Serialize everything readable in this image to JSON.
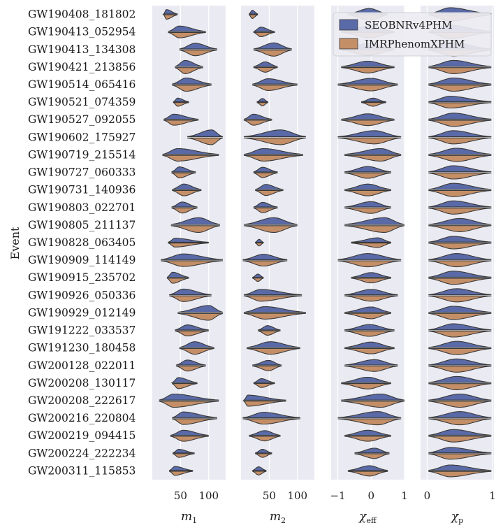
{
  "colors": {
    "panel_bg": "#eaeaf2",
    "grid": "#ffffff",
    "upper": "#5a6aa8",
    "lower": "#c48e67",
    "line": "#3a3a3a"
  },
  "chart_data": {
    "type": "violin",
    "ylabel": "Event",
    "legend": {
      "placement": "top-right",
      "entries": [
        "SEOBNRv4PHM",
        "IMRPhenomXPHM"
      ]
    },
    "events": [
      "GW190408_181802",
      "GW190413_052954",
      "GW190413_134308",
      "GW190421_213856",
      "GW190514_065416",
      "GW190521_074359",
      "GW190527_092055",
      "GW190602_175927",
      "GW190719_215514",
      "GW190727_060333",
      "GW190731_140936",
      "GW190803_022701",
      "GW190805_211137",
      "GW190828_063405",
      "GW190909_114149",
      "GW190915_235702",
      "GW190926_050336",
      "GW190929_012149",
      "GW191222_033537",
      "GW191230_180458",
      "GW200128_022011",
      "GW200208_130117",
      "GW200208_222617",
      "GW200216_220804",
      "GW200219_094415",
      "GW200224_222234",
      "GW200311_115853"
    ],
    "panels": [
      {
        "xlabel": "m",
        "xlabel_sub": "1",
        "xlim": [
          0,
          130
        ],
        "ticks": [
          50,
          100
        ],
        "tick_labels": [
          "50",
          "100"
        ],
        "violins": [
          [
            25,
            20,
            45,
            0.65
          ],
          [
            48,
            28,
            95,
            0.8
          ],
          [
            76,
            48,
            115,
            0.85
          ],
          [
            58,
            40,
            90,
            0.9
          ],
          [
            60,
            35,
            105,
            0.9
          ],
          [
            45,
            37,
            65,
            0.55
          ],
          [
            38,
            20,
            82,
            0.75
          ],
          [
            105,
            62,
            125,
            1.0
          ],
          [
            45,
            18,
            118,
            0.85
          ],
          [
            48,
            34,
            77,
            0.75
          ],
          [
            56,
            35,
            87,
            0.8
          ],
          [
            53,
            34,
            80,
            0.75
          ],
          [
            82,
            33,
            120,
            1.0
          ],
          [
            40,
            28,
            100,
            0.6
          ],
          [
            55,
            15,
            125,
            0.85
          ],
          [
            36,
            26,
            65,
            0.75
          ],
          [
            55,
            30,
            105,
            0.85
          ],
          [
            100,
            45,
            125,
            1.0
          ],
          [
            62,
            40,
            100,
            0.75
          ],
          [
            75,
            48,
            110,
            0.85
          ],
          [
            62,
            42,
            95,
            0.75
          ],
          [
            46,
            35,
            80,
            0.75
          ],
          [
            38,
            12,
            118,
            0.9
          ],
          [
            55,
            35,
            115,
            0.85
          ],
          [
            55,
            32,
            100,
            0.75
          ],
          [
            47,
            36,
            75,
            0.55
          ],
          [
            40,
            30,
            72,
            0.6
          ]
        ]
      },
      {
        "xlabel": "m",
        "xlabel_sub": "2",
        "xlim": [
          0,
          130
        ],
        "ticks": [
          50,
          100
        ],
        "tick_labels": [
          "50",
          "100"
        ],
        "violins": [
          [
            20,
            14,
            30,
            0.55
          ],
          [
            35,
            22,
            60,
            0.65
          ],
          [
            58,
            22,
            90,
            0.9
          ],
          [
            43,
            22,
            65,
            0.7
          ],
          [
            48,
            20,
            100,
            0.8
          ],
          [
            38,
            28,
            48,
            0.5
          ],
          [
            22,
            5,
            55,
            0.75
          ],
          [
            70,
            5,
            115,
            1.0
          ],
          [
            40,
            5,
            110,
            0.85
          ],
          [
            38,
            22,
            65,
            0.7
          ],
          [
            44,
            25,
            75,
            0.75
          ],
          [
            38,
            22,
            65,
            0.7
          ],
          [
            58,
            5,
            100,
            1.0
          ],
          [
            32,
            25,
            40,
            0.45
          ],
          [
            40,
            3,
            82,
            0.8
          ],
          [
            30,
            20,
            40,
            0.5
          ],
          [
            35,
            5,
            108,
            0.8
          ],
          [
            42,
            5,
            115,
            0.85
          ],
          [
            47,
            30,
            70,
            0.65
          ],
          [
            52,
            10,
            105,
            0.85
          ],
          [
            49,
            20,
            72,
            0.7
          ],
          [
            36,
            22,
            60,
            0.6
          ],
          [
            12,
            5,
            80,
            0.75
          ],
          [
            40,
            3,
            105,
            0.8
          ],
          [
            42,
            14,
            70,
            0.7
          ],
          [
            38,
            25,
            55,
            0.55
          ],
          [
            31,
            20,
            45,
            0.55
          ]
        ]
      },
      {
        "xlabel": "χ",
        "xlabel_sub": "eff",
        "xlim": [
          -1.2,
          1.0
        ],
        "ticks": [
          -1,
          0,
          1
        ],
        "tick_labels": [
          "−1",
          "0",
          "1"
        ],
        "violins": [
          [
            -0.05,
            -0.7,
            0.5,
            0.8
          ],
          [
            -0.05,
            -0.9,
            0.7,
            0.8
          ],
          [
            -0.1,
            -0.9,
            0.7,
            0.8
          ],
          [
            -0.1,
            -0.9,
            0.7,
            0.8
          ],
          [
            0.0,
            -1.0,
            0.8,
            0.85
          ],
          [
            0.05,
            -0.3,
            0.45,
            0.55
          ],
          [
            -0.1,
            -0.9,
            0.7,
            0.8
          ],
          [
            0.1,
            -1.0,
            0.9,
            0.9
          ],
          [
            0.3,
            -0.8,
            0.9,
            0.85
          ],
          [
            -0.1,
            -0.8,
            0.6,
            0.8
          ],
          [
            -0.1,
            -0.8,
            0.6,
            0.8
          ],
          [
            0.0,
            -0.8,
            0.6,
            0.8
          ],
          [
            0.4,
            -0.8,
            1.0,
            1.0
          ],
          [
            0.2,
            -0.6,
            0.6,
            0.65
          ],
          [
            -0.1,
            -1.0,
            0.9,
            0.9
          ],
          [
            0.0,
            -0.6,
            0.6,
            0.7
          ],
          [
            0.0,
            -0.8,
            0.8,
            0.8
          ],
          [
            0.0,
            -0.8,
            0.6,
            0.8
          ],
          [
            -0.05,
            -0.8,
            0.7,
            0.8
          ],
          [
            0.0,
            -0.8,
            0.7,
            0.8
          ],
          [
            0.1,
            -0.8,
            0.8,
            0.8
          ],
          [
            -0.1,
            -0.9,
            0.6,
            0.8
          ],
          [
            0.3,
            -0.9,
            1.0,
            0.9
          ],
          [
            0.2,
            -1.0,
            0.9,
            0.9
          ],
          [
            -0.1,
            -0.8,
            0.6,
            0.75
          ],
          [
            0.1,
            -0.5,
            0.55,
            0.7
          ],
          [
            -0.05,
            -0.7,
            0.5,
            0.7
          ]
        ]
      },
      {
        "xlabel": "χ",
        "xlabel_sub": "p",
        "xlim": [
          -0.1,
          1.02
        ],
        "ticks": [
          0,
          1
        ],
        "tick_labels": [
          "0",
          "1"
        ],
        "violins": [
          [
            0.35,
            0.02,
            0.98,
            0.9
          ],
          [
            0.35,
            0.02,
            0.98,
            0.9
          ],
          [
            0.4,
            0.02,
            0.98,
            0.9
          ],
          [
            0.4,
            0.02,
            0.98,
            0.9
          ],
          [
            0.4,
            0.02,
            0.98,
            0.9
          ],
          [
            0.35,
            0.02,
            0.98,
            0.8
          ],
          [
            0.4,
            0.02,
            0.98,
            0.9
          ],
          [
            0.4,
            0.02,
            0.98,
            0.9
          ],
          [
            0.45,
            0.02,
            0.98,
            0.9
          ],
          [
            0.4,
            0.02,
            0.98,
            0.9
          ],
          [
            0.4,
            0.02,
            0.98,
            0.9
          ],
          [
            0.4,
            0.02,
            0.98,
            0.9
          ],
          [
            0.5,
            0.02,
            0.98,
            0.9
          ],
          [
            0.4,
            0.02,
            0.98,
            0.85
          ],
          [
            0.45,
            0.02,
            0.98,
            0.9
          ],
          [
            0.4,
            0.02,
            0.98,
            0.9
          ],
          [
            0.45,
            0.02,
            0.98,
            0.9
          ],
          [
            0.4,
            0.02,
            0.98,
            0.9
          ],
          [
            0.4,
            0.02,
            0.98,
            0.9
          ],
          [
            0.45,
            0.02,
            0.98,
            0.9
          ],
          [
            0.45,
            0.02,
            0.98,
            0.9
          ],
          [
            0.45,
            0.02,
            0.98,
            0.9
          ],
          [
            0.5,
            0.02,
            0.98,
            0.9
          ],
          [
            0.5,
            0.02,
            0.98,
            0.9
          ],
          [
            0.4,
            0.02,
            0.98,
            0.85
          ],
          [
            0.35,
            0.02,
            0.98,
            0.8
          ],
          [
            0.35,
            0.02,
            0.98,
            0.8
          ]
        ]
      }
    ]
  }
}
